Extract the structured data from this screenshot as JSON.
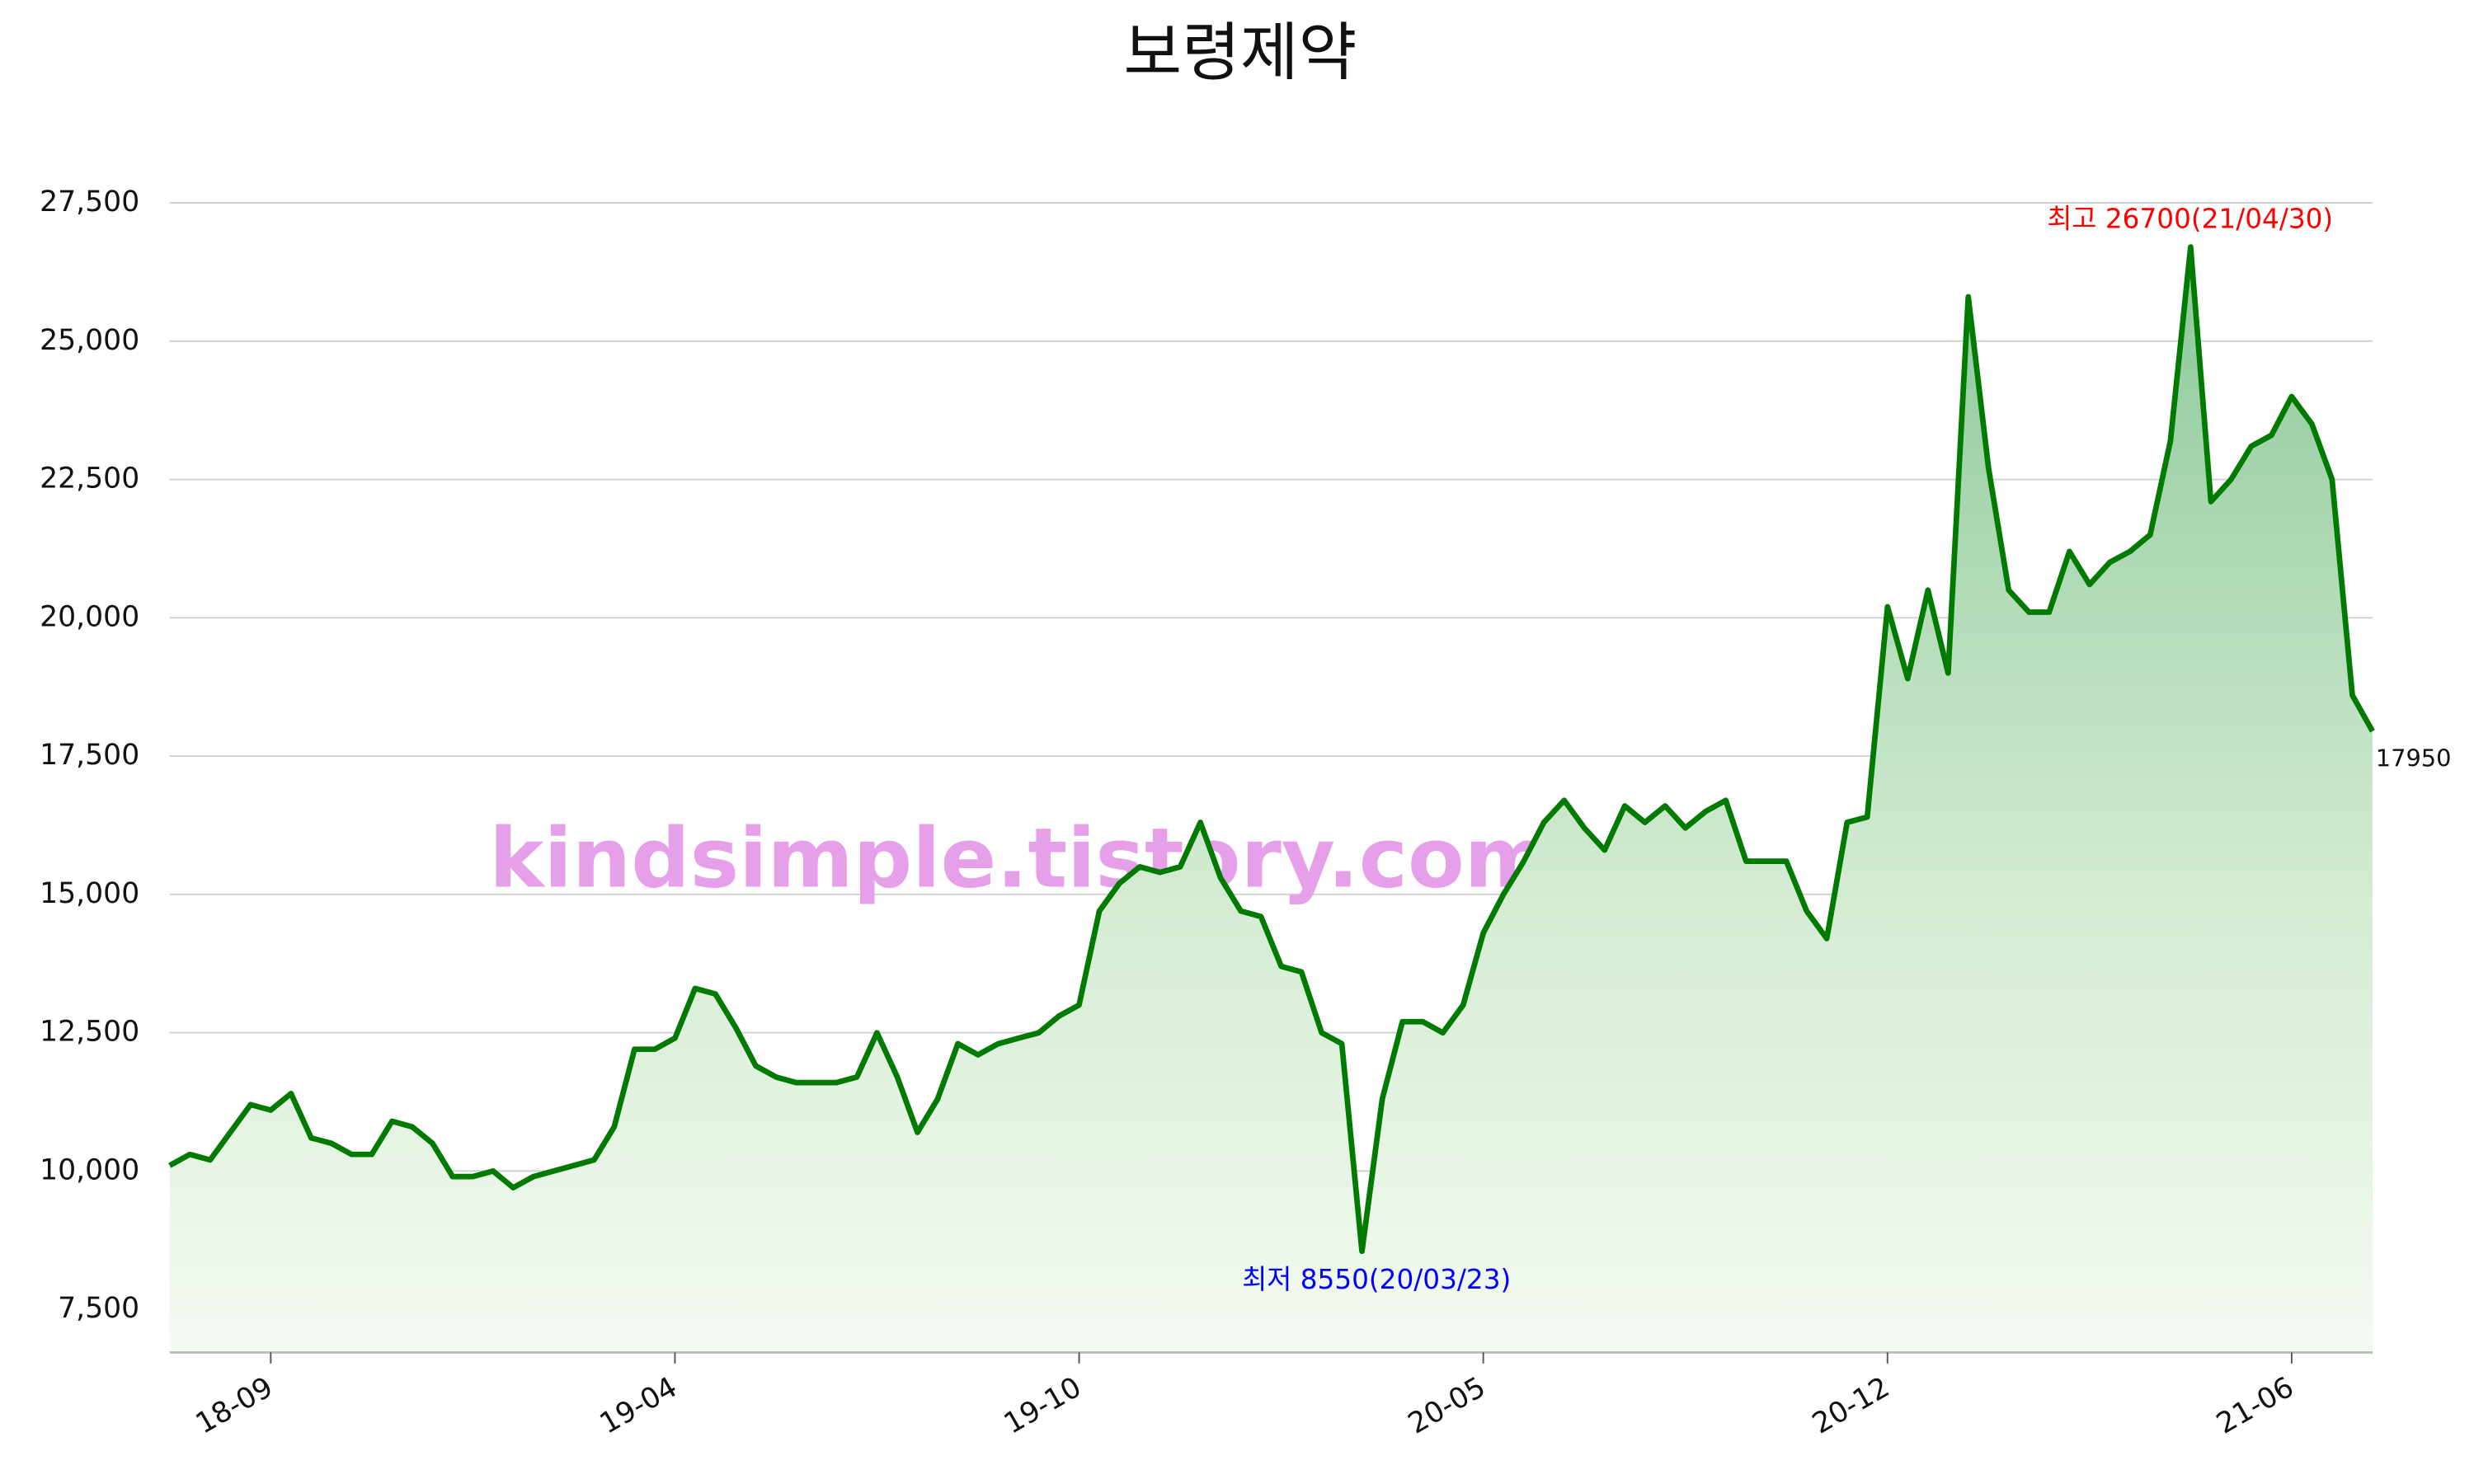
{
  "chart_data": {
    "type": "area-line",
    "title": "보령제약",
    "categories": [
      null,
      null,
      null,
      null,
      null,
      "18-09",
      null,
      null,
      null,
      null,
      null,
      null,
      null,
      null,
      null,
      null,
      null,
      null,
      null,
      null,
      null,
      null,
      null,
      null,
      null,
      "19-04",
      null,
      null,
      null,
      null,
      null,
      null,
      null,
      null,
      null,
      null,
      null,
      null,
      null,
      null,
      null,
      null,
      null,
      null,
      null,
      "19-10",
      null,
      null,
      null,
      null,
      null,
      null,
      null,
      null,
      null,
      null,
      null,
      null,
      null,
      null,
      null,
      null,
      null,
      null,
      null,
      "20-05",
      null,
      null,
      null,
      null,
      null,
      null,
      null,
      null,
      null,
      null,
      null,
      null,
      null,
      null,
      null,
      null,
      null,
      null,
      null,
      "20-12",
      null,
      null,
      null,
      null,
      null,
      null,
      null,
      null,
      null,
      null,
      null,
      null,
      null,
      null,
      null,
      null,
      null,
      null,
      null,
      "21-06",
      null,
      null,
      null,
      null
    ],
    "series": [
      {
        "color": "#007a00",
        "values": [
          10100,
          10300,
          10200,
          10700,
          11200,
          11100,
          11400,
          10600,
          10500,
          10300,
          10300,
          10900,
          10800,
          10500,
          9900,
          9900,
          10000,
          9700,
          9900,
          10000,
          10100,
          10200,
          10800,
          12200,
          12200,
          12400,
          13300,
          13200,
          12600,
          11900,
          11700,
          11600,
          11600,
          11600,
          11700,
          12500,
          11700,
          10700,
          11300,
          12300,
          12100,
          12300,
          12400,
          12500,
          12800,
          13000,
          14700,
          15200,
          15500,
          15400,
          15500,
          16300,
          15300,
          14700,
          14600,
          13700,
          13600,
          12500,
          12300,
          8550,
          11300,
          12700,
          12700,
          12500,
          13000,
          14300,
          15000,
          15600,
          16300,
          16700,
          16200,
          15800,
          16600,
          16300,
          16600,
          16200,
          16500,
          16700,
          15600,
          15600,
          15600,
          14700,
          14200,
          16300,
          16400,
          20200,
          18900,
          20500,
          19000,
          25800,
          22700,
          20500,
          20100,
          20100,
          21200,
          20600,
          21000,
          21200,
          21500,
          23200,
          26700,
          22100,
          22500,
          23100,
          23300,
          24000,
          23500,
          22500,
          18600,
          17950
        ]
      }
    ],
    "ylim": [
      6750,
      28300
    ],
    "yticks": [
      {
        "value": 7500,
        "label": "7,500"
      },
      {
        "value": 10000,
        "label": "10,000"
      },
      {
        "value": 12500,
        "label": "12,500"
      },
      {
        "value": 15000,
        "label": "15,000"
      },
      {
        "value": 17500,
        "label": "17,500"
      },
      {
        "value": 20000,
        "label": "20,000"
      },
      {
        "value": 22500,
        "label": "22,500"
      },
      {
        "value": 25000,
        "label": "25,000"
      },
      {
        "value": 27500,
        "label": "27,500"
      }
    ],
    "grid": true,
    "annotations": [
      {
        "text": "최고 26700(21/04/30)",
        "color": "#ff0000"
      },
      {
        "text": "최저 8550(20/03/23)",
        "color": "#0000ff"
      }
    ],
    "watermark": "kindsimple.tistory.com"
  }
}
